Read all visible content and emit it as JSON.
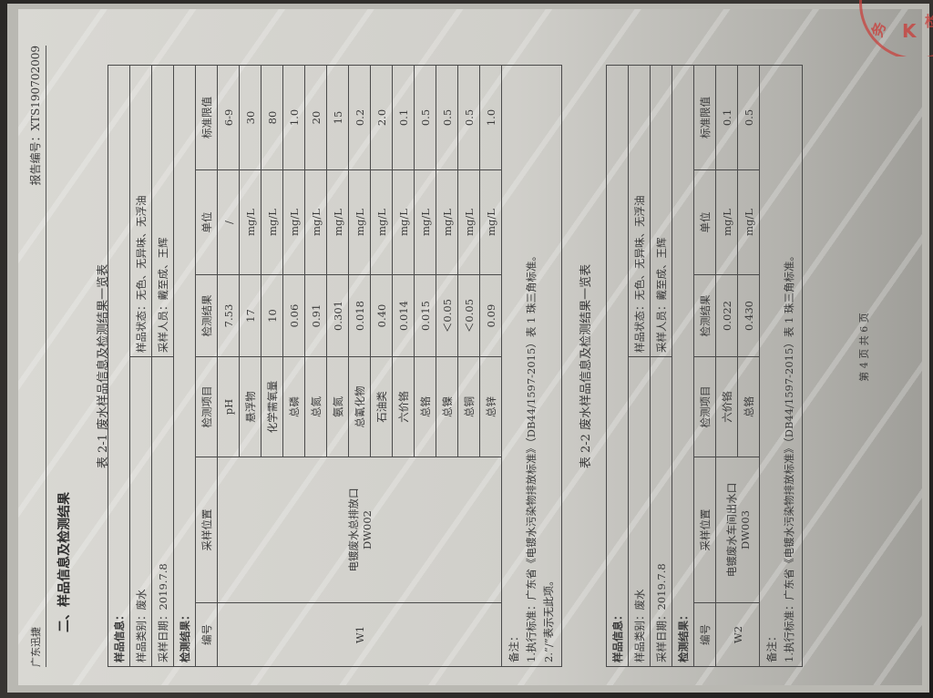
{
  "header": {
    "company": "广东迅捷",
    "report_no": "报告编号：XTS190702009"
  },
  "section_title": "二、样品信息及检测结果",
  "table1": {
    "caption": "表 2-1   废水样品信息及检测结果一览表",
    "sample_info": "样品信息：",
    "sample_type": "样品类别：废水",
    "sample_state": "样品状态：无色、无异味、无浮油",
    "sample_date": "采样日期：2019.7.8",
    "samplers": "采样人员：戴至成、王辉",
    "results_label": "检测结果：",
    "columns": [
      "编号",
      "采样位置",
      "检测项目",
      "检测结果",
      "单位",
      "标准限值"
    ],
    "id": "W1",
    "location": [
      "电镀废水总排放口",
      "DW002"
    ],
    "rows": [
      [
        "pH",
        "7.53",
        "/",
        "6-9"
      ],
      [
        "悬浮物",
        "17",
        "mg/L",
        "30"
      ],
      [
        "化学需氧量",
        "10",
        "mg/L",
        "80"
      ],
      [
        "总磷",
        "0.06",
        "mg/L",
        "1.0"
      ],
      [
        "总氮",
        "0.91",
        "mg/L",
        "20"
      ],
      [
        "氨氮",
        "0.301",
        "mg/L",
        "15"
      ],
      [
        "总氰化物",
        "0.018",
        "mg/L",
        "0.2"
      ],
      [
        "石油类",
        "0.40",
        "mg/L",
        "2.0"
      ],
      [
        "六价铬",
        "0.014",
        "mg/L",
        "0.1"
      ],
      [
        "总铬",
        "0.015",
        "mg/L",
        "0.5"
      ],
      [
        "总镍",
        "＜0.05",
        "mg/L",
        "0.5"
      ],
      [
        "总铜",
        "＜0.05",
        "mg/L",
        "0.5"
      ],
      [
        "总锌",
        "0.09",
        "mg/L",
        "1.0"
      ]
    ],
    "notes": [
      "备注：",
      "1.执行标准：广东省《电镀水污染物排放标准》（DB44/1597-2015）表 1 珠三角标准。",
      "2.“/”表示无此项。"
    ]
  },
  "table2": {
    "caption": "表 2-2   废水样品信息及检测结果一览表",
    "sample_info": "样品信息：",
    "sample_type": "样品类别：废水",
    "sample_state": "样品状态：无色、无异味、无浮油",
    "sample_date": "采样日期：2019.7.8",
    "samplers": "采样人员：戴至成、王辉",
    "results_label": "检测结果：",
    "columns": [
      "编号",
      "采样位置",
      "检测项目",
      "检测结果",
      "单位",
      "标准限值"
    ],
    "id": "W2",
    "location": [
      "电镀废水车间出水口",
      "DW003"
    ],
    "rows": [
      [
        "六价铬",
        "0.022",
        "mg/L",
        "0.1"
      ],
      [
        "总铬",
        "0.430",
        "mg/L",
        "0.5"
      ]
    ],
    "notes": [
      "备注：",
      "1.执行标准：广东省《电镀水污染物排放标准》（DB44/1597-2015）表 1 珠三角标准。"
    ]
  },
  "page_number": "第 4 页   共 6 页",
  "colors": {
    "ink": "#3a3a3a",
    "stamp": "#c8423e",
    "paper": "#d4d3ce"
  }
}
